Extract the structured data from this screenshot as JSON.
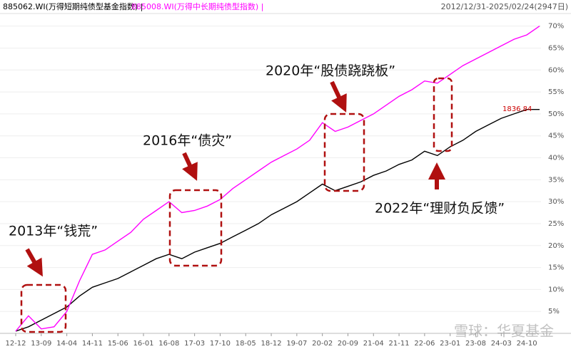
{
  "chart_data": {
    "type": "line",
    "range_label": "2012/12/31-2025/02/24(2947日)",
    "categories": [
      "12-12",
      null,
      "13-09",
      null,
      "14-04",
      null,
      "14-11",
      null,
      "15-06",
      null,
      "16-01",
      null,
      "16-08",
      null,
      "17-03",
      null,
      "17-10",
      null,
      "18-05",
      null,
      "18-12",
      null,
      "19-07",
      null,
      "20-02",
      null,
      "20-09",
      null,
      "21-04",
      null,
      "21-11",
      null,
      "22-06",
      null,
      "23-01",
      null,
      "23-08",
      null,
      "24-03",
      null,
      "24-10",
      null
    ],
    "series": [
      {
        "name": "885062.WI(万得短期纯债型基金指数) |",
        "color": "#000000",
        "values": [
          0.5,
          1.5,
          3,
          4.5,
          6,
          8.5,
          10.5,
          11.5,
          12.5,
          14,
          15.5,
          17,
          18,
          17,
          18.5,
          19.5,
          20.5,
          22,
          23.5,
          25,
          27,
          28.5,
          30,
          32,
          34,
          32.5,
          33.5,
          34.5,
          36,
          37,
          38.5,
          39.5,
          41.5,
          40.5,
          42.5,
          44,
          46,
          47.5,
          49,
          50,
          51,
          51
        ]
      },
      {
        "name": "885008.WI(万得中长期纯债型指数) |",
        "color": "#ff00ff",
        "values": [
          0.5,
          4,
          1,
          1.5,
          5,
          12,
          18,
          19,
          21,
          23,
          26,
          28,
          30,
          27.5,
          28,
          29,
          30.5,
          33,
          35,
          37,
          39,
          40.5,
          42,
          44,
          48,
          46,
          47,
          48.5,
          50,
          52,
          54,
          55.5,
          57.5,
          57,
          59,
          61,
          62.5,
          64,
          65.5,
          67,
          68,
          70
        ]
      }
    ],
    "ylim": [
      0,
      74
    ],
    "yticks": [
      {
        "value": 5,
        "label": "5%"
      },
      {
        "value": 10,
        "label": "10%"
      },
      {
        "value": 15,
        "label": "15%"
      },
      {
        "value": 20,
        "label": "20%"
      },
      {
        "value": 25,
        "label": "25%"
      },
      {
        "value": 30,
        "label": "30%"
      },
      {
        "value": 35,
        "label": "35%"
      },
      {
        "value": 40,
        "label": "40%"
      },
      {
        "value": 45,
        "label": "45%"
      },
      {
        "value": 50,
        "label": "50%"
      },
      {
        "value": 55,
        "label": "55%"
      },
      {
        "value": 60,
        "label": "60%"
      },
      {
        "value": 65,
        "label": "65%"
      },
      {
        "value": 70,
        "label": "70%"
      }
    ],
    "grid": true,
    "end_label": "1836.84",
    "annotations": [
      "2013年“钱荒”",
      "2016年“债灾”",
      "2020年“股债跷跷板”",
      "2022年“理财负反馈”"
    ],
    "watermark": "雪球：华夏基金"
  }
}
